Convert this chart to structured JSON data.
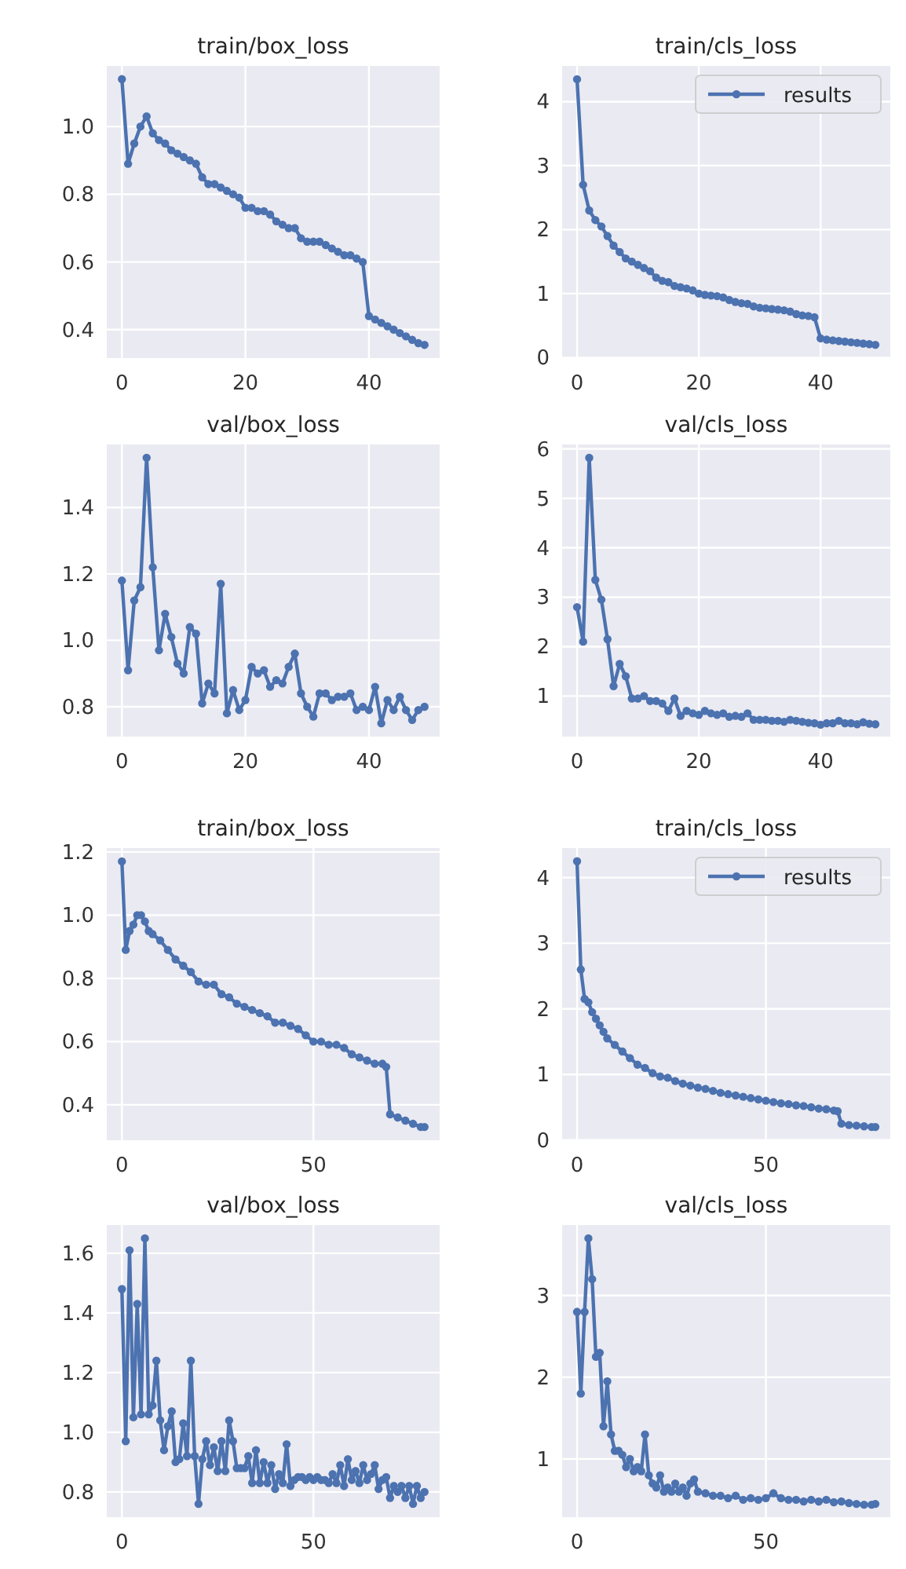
{
  "chart_data": [
    {
      "type": "line",
      "title": "train/box_loss",
      "xlim": [
        -2.45,
        51.45
      ],
      "xticks": [
        0,
        20,
        40
      ],
      "ylim": [
        0.316,
        1.179
      ],
      "yticks": [
        {
          "value": 0.4,
          "label": "0.4"
        },
        {
          "value": 0.6,
          "label": "0.6"
        },
        {
          "value": 0.8,
          "label": "0.8"
        },
        {
          "value": 1.0,
          "label": "1.0"
        }
      ],
      "grid": true,
      "marker": "circle",
      "legend": false,
      "series": [
        {
          "color": "#4c72b0",
          "x": [
            0,
            1,
            2,
            3,
            4,
            5,
            6,
            7,
            8,
            9,
            10,
            11,
            12,
            13,
            14,
            15,
            16,
            17,
            18,
            19,
            20,
            21,
            22,
            23,
            24,
            25,
            26,
            27,
            28,
            29,
            30,
            31,
            32,
            33,
            34,
            35,
            36,
            37,
            38,
            39,
            40,
            41,
            42,
            43,
            44,
            45,
            46,
            47,
            48,
            49
          ],
          "values": [
            1.14,
            0.89,
            0.95,
            1.0,
            1.03,
            0.98,
            0.96,
            0.95,
            0.93,
            0.92,
            0.91,
            0.9,
            0.89,
            0.85,
            0.83,
            0.83,
            0.82,
            0.81,
            0.8,
            0.79,
            0.76,
            0.76,
            0.75,
            0.75,
            0.74,
            0.72,
            0.71,
            0.7,
            0.7,
            0.67,
            0.66,
            0.66,
            0.66,
            0.65,
            0.64,
            0.63,
            0.62,
            0.62,
            0.61,
            0.6,
            0.44,
            0.43,
            0.42,
            0.41,
            0.4,
            0.39,
            0.38,
            0.37,
            0.36,
            0.355
          ]
        }
      ]
    },
    {
      "type": "line",
      "title": "train/cls_loss",
      "xlim": [
        -2.45,
        51.45
      ],
      "xticks": [
        0,
        20,
        40
      ],
      "ylim": [
        -0.0075,
        4.5575
      ],
      "yticks": [
        0,
        1,
        2,
        3,
        4
      ],
      "grid": true,
      "marker": "circle",
      "legend": "top right",
      "series": [
        {
          "name": "results",
          "color": "#4c72b0",
          "x": [
            0,
            1,
            2,
            3,
            4,
            5,
            6,
            7,
            8,
            9,
            10,
            11,
            12,
            13,
            14,
            15,
            16,
            17,
            18,
            19,
            20,
            21,
            22,
            23,
            24,
            25,
            26,
            27,
            28,
            29,
            30,
            31,
            32,
            33,
            34,
            35,
            36,
            37,
            38,
            39,
            40,
            41,
            42,
            43,
            44,
            45,
            46,
            47,
            48,
            49
          ],
          "values": [
            4.35,
            2.7,
            2.3,
            2.15,
            2.05,
            1.9,
            1.75,
            1.65,
            1.55,
            1.5,
            1.45,
            1.4,
            1.35,
            1.25,
            1.2,
            1.18,
            1.12,
            1.1,
            1.08,
            1.05,
            1.0,
            0.98,
            0.97,
            0.96,
            0.94,
            0.9,
            0.87,
            0.85,
            0.84,
            0.8,
            0.78,
            0.77,
            0.76,
            0.75,
            0.74,
            0.72,
            0.68,
            0.66,
            0.65,
            0.63,
            0.3,
            0.28,
            0.27,
            0.26,
            0.25,
            0.24,
            0.23,
            0.22,
            0.21,
            0.2
          ]
        }
      ]
    },
    {
      "type": "line",
      "title": "val/box_loss",
      "xlim": [
        -2.45,
        51.45
      ],
      "xticks": [
        0,
        20,
        40
      ],
      "ylim": [
        0.71,
        1.59
      ],
      "yticks": [
        {
          "value": 0.8,
          "label": "0.8"
        },
        {
          "value": 1.0,
          "label": "1.0"
        },
        {
          "value": 1.2,
          "label": "1.2"
        },
        {
          "value": 1.4,
          "label": "1.4"
        }
      ],
      "grid": true,
      "marker": "circle",
      "legend": false,
      "series": [
        {
          "color": "#4c72b0",
          "x": [
            0,
            1,
            2,
            3,
            4,
            5,
            6,
            7,
            8,
            9,
            10,
            11,
            12,
            13,
            14,
            15,
            16,
            17,
            18,
            19,
            20,
            21,
            22,
            23,
            24,
            25,
            26,
            27,
            28,
            29,
            30,
            31,
            32,
            33,
            34,
            35,
            36,
            37,
            38,
            39,
            40,
            41,
            42,
            43,
            44,
            45,
            46,
            47,
            48,
            49
          ],
          "values": [
            1.18,
            0.91,
            1.12,
            1.16,
            1.55,
            1.22,
            0.97,
            1.08,
            1.01,
            0.93,
            0.9,
            1.04,
            1.02,
            0.81,
            0.87,
            0.84,
            1.17,
            0.78,
            0.85,
            0.79,
            0.82,
            0.92,
            0.9,
            0.91,
            0.86,
            0.88,
            0.87,
            0.92,
            0.96,
            0.84,
            0.8,
            0.77,
            0.84,
            0.84,
            0.82,
            0.83,
            0.83,
            0.84,
            0.79,
            0.8,
            0.79,
            0.86,
            0.75,
            0.82,
            0.79,
            0.83,
            0.79,
            0.76,
            0.79,
            0.8
          ]
        }
      ]
    },
    {
      "type": "line",
      "title": "val/cls_loss",
      "xlim": [
        -2.45,
        51.45
      ],
      "xticks": [
        0,
        20,
        40
      ],
      "ylim": [
        0.18,
        6.09
      ],
      "yticks": [
        1,
        2,
        3,
        4,
        5,
        6
      ],
      "grid": true,
      "marker": "circle",
      "legend": false,
      "series": [
        {
          "color": "#4c72b0",
          "x": [
            0,
            1,
            2,
            3,
            4,
            5,
            6,
            7,
            8,
            9,
            10,
            11,
            12,
            13,
            14,
            15,
            16,
            17,
            18,
            19,
            20,
            21,
            22,
            23,
            24,
            25,
            26,
            27,
            28,
            29,
            30,
            31,
            32,
            33,
            34,
            35,
            36,
            37,
            38,
            39,
            40,
            41,
            42,
            43,
            44,
            45,
            46,
            47,
            48,
            49
          ],
          "values": [
            2.8,
            2.1,
            5.82,
            3.35,
            2.95,
            2.15,
            1.2,
            1.65,
            1.4,
            0.95,
            0.95,
            1.0,
            0.9,
            0.9,
            0.85,
            0.7,
            0.95,
            0.6,
            0.7,
            0.65,
            0.62,
            0.7,
            0.65,
            0.62,
            0.65,
            0.58,
            0.6,
            0.58,
            0.65,
            0.52,
            0.52,
            0.52,
            0.5,
            0.5,
            0.48,
            0.52,
            0.5,
            0.48,
            0.46,
            0.45,
            0.42,
            0.45,
            0.45,
            0.5,
            0.45,
            0.45,
            0.43,
            0.47,
            0.44,
            0.43
          ]
        }
      ]
    },
    {
      "type": "line",
      "title": "train/box_loss",
      "xlim": [
        -3.95,
        82.95
      ],
      "xticks": [
        0,
        50
      ],
      "ylim": [
        0.288,
        1.212
      ],
      "yticks": [
        {
          "value": 0.4,
          "label": "0.4"
        },
        {
          "value": 0.6,
          "label": "0.6"
        },
        {
          "value": 0.8,
          "label": "0.8"
        },
        {
          "value": 1.0,
          "label": "1.0"
        },
        {
          "value": 1.2,
          "label": "1.2"
        }
      ],
      "grid": true,
      "marker": "circle",
      "legend": false,
      "series": [
        {
          "color": "#4c72b0",
          "x": [
            0,
            1,
            2,
            3,
            4,
            5,
            6,
            7,
            8,
            10,
            12,
            14,
            16,
            18,
            20,
            22,
            24,
            26,
            28,
            30,
            32,
            34,
            36,
            38,
            40,
            42,
            44,
            46,
            48,
            50,
            52,
            54,
            56,
            58,
            60,
            62,
            64,
            66,
            68,
            69,
            70,
            72,
            74,
            76,
            78,
            79
          ],
          "values": [
            1.17,
            0.89,
            0.95,
            0.97,
            1.0,
            1.0,
            0.98,
            0.95,
            0.94,
            0.92,
            0.89,
            0.86,
            0.84,
            0.82,
            0.79,
            0.78,
            0.78,
            0.75,
            0.74,
            0.72,
            0.71,
            0.7,
            0.69,
            0.68,
            0.66,
            0.66,
            0.65,
            0.64,
            0.62,
            0.6,
            0.6,
            0.59,
            0.59,
            0.58,
            0.56,
            0.55,
            0.54,
            0.53,
            0.53,
            0.52,
            0.37,
            0.36,
            0.35,
            0.34,
            0.33,
            0.33
          ]
        }
      ]
    },
    {
      "type": "line",
      "title": "train/cls_loss",
      "xlim": [
        -3.95,
        82.95
      ],
      "xticks": [
        0,
        50
      ],
      "ylim": [
        -0.0025,
        4.45
      ],
      "yticks": [
        0,
        1,
        2,
        3,
        4
      ],
      "grid": true,
      "marker": "circle",
      "legend": "top right",
      "series": [
        {
          "name": "results",
          "color": "#4c72b0",
          "x": [
            0,
            1,
            2,
            3,
            4,
            5,
            6,
            7,
            8,
            10,
            12,
            14,
            16,
            18,
            20,
            22,
            24,
            26,
            28,
            30,
            32,
            34,
            36,
            38,
            40,
            42,
            44,
            46,
            48,
            50,
            52,
            54,
            56,
            58,
            60,
            62,
            64,
            66,
            68,
            69,
            70,
            72,
            74,
            76,
            78,
            79
          ],
          "values": [
            4.25,
            2.6,
            2.15,
            2.1,
            1.95,
            1.85,
            1.75,
            1.65,
            1.55,
            1.45,
            1.35,
            1.25,
            1.15,
            1.1,
            1.02,
            0.97,
            0.95,
            0.9,
            0.86,
            0.83,
            0.8,
            0.78,
            0.75,
            0.72,
            0.7,
            0.68,
            0.66,
            0.64,
            0.62,
            0.6,
            0.58,
            0.56,
            0.55,
            0.53,
            0.52,
            0.5,
            0.48,
            0.47,
            0.45,
            0.44,
            0.25,
            0.23,
            0.22,
            0.21,
            0.2,
            0.2
          ]
        }
      ]
    },
    {
      "type": "line",
      "title": "val/box_loss",
      "xlim": [
        -3.95,
        82.95
      ],
      "xticks": [
        0,
        50
      ],
      "ylim": [
        0.7155,
        1.6945
      ],
      "yticks": [
        {
          "value": 0.8,
          "label": "0.8"
        },
        {
          "value": 1.0,
          "label": "1.0"
        },
        {
          "value": 1.2,
          "label": "1.2"
        },
        {
          "value": 1.4,
          "label": "1.4"
        },
        {
          "value": 1.6,
          "label": "1.6"
        }
      ],
      "grid": true,
      "marker": "circle",
      "legend": false,
      "series": [
        {
          "color": "#4c72b0",
          "x": [
            0,
            1,
            2,
            3,
            4,
            5,
            6,
            7,
            8,
            9,
            10,
            11,
            12,
            13,
            14,
            15,
            16,
            17,
            18,
            19,
            20,
            21,
            22,
            23,
            24,
            25,
            26,
            27,
            28,
            29,
            30,
            31,
            32,
            33,
            34,
            35,
            36,
            37,
            38,
            39,
            40,
            41,
            42,
            43,
            44,
            45,
            46,
            47,
            48,
            49,
            50,
            51,
            52,
            53,
            54,
            55,
            56,
            57,
            58,
            59,
            60,
            61,
            62,
            63,
            64,
            65,
            66,
            67,
            68,
            69,
            70,
            71,
            72,
            73,
            74,
            75,
            76,
            77,
            78,
            79
          ],
          "values": [
            1.48,
            0.97,
            1.61,
            1.05,
            1.43,
            1.06,
            1.65,
            1.06,
            1.09,
            1.24,
            1.04,
            0.94,
            1.02,
            1.07,
            0.9,
            0.91,
            1.03,
            0.92,
            1.24,
            0.92,
            0.76,
            0.91,
            0.97,
            0.89,
            0.95,
            0.87,
            0.97,
            0.87,
            1.04,
            0.97,
            0.88,
            0.88,
            0.88,
            0.92,
            0.83,
            0.94,
            0.83,
            0.9,
            0.83,
            0.89,
            0.81,
            0.86,
            0.83,
            0.96,
            0.82,
            0.84,
            0.85,
            0.85,
            0.84,
            0.85,
            0.84,
            0.85,
            0.84,
            0.84,
            0.83,
            0.86,
            0.83,
            0.89,
            0.82,
            0.91,
            0.84,
            0.87,
            0.83,
            0.89,
            0.84,
            0.86,
            0.89,
            0.81,
            0.84,
            0.85,
            0.78,
            0.82,
            0.8,
            0.82,
            0.78,
            0.82,
            0.76,
            0.82,
            0.78,
            0.8
          ]
        }
      ]
    },
    {
      "type": "line",
      "title": "val/cls_loss",
      "xlim": [
        -3.95,
        82.95
      ],
      "xticks": [
        0,
        50
      ],
      "ylim": [
        0.2875,
        3.8625
      ],
      "yticks": [
        1,
        2,
        3
      ],
      "grid": true,
      "marker": "circle",
      "legend": false,
      "series": [
        {
          "color": "#4c72b0",
          "x": [
            0,
            1,
            2,
            3,
            4,
            5,
            6,
            7,
            8,
            9,
            10,
            11,
            12,
            13,
            14,
            15,
            16,
            17,
            18,
            19,
            20,
            21,
            22,
            23,
            24,
            25,
            26,
            27,
            28,
            29,
            30,
            31,
            32,
            34,
            36,
            38,
            40,
            42,
            44,
            46,
            48,
            50,
            52,
            54,
            56,
            58,
            60,
            62,
            64,
            66,
            68,
            70,
            72,
            74,
            76,
            78,
            79
          ],
          "values": [
            2.8,
            1.8,
            2.8,
            3.7,
            3.2,
            2.25,
            2.3,
            1.4,
            1.95,
            1.3,
            1.1,
            1.1,
            1.05,
            0.9,
            1.0,
            0.85,
            0.9,
            0.85,
            1.3,
            0.8,
            0.7,
            0.65,
            0.8,
            0.6,
            0.65,
            0.6,
            0.7,
            0.6,
            0.65,
            0.55,
            0.7,
            0.75,
            0.6,
            0.58,
            0.55,
            0.55,
            0.52,
            0.55,
            0.5,
            0.52,
            0.5,
            0.52,
            0.58,
            0.52,
            0.5,
            0.5,
            0.48,
            0.5,
            0.48,
            0.5,
            0.47,
            0.48,
            0.46,
            0.45,
            0.44,
            0.44,
            0.45
          ]
        }
      ]
    }
  ]
}
